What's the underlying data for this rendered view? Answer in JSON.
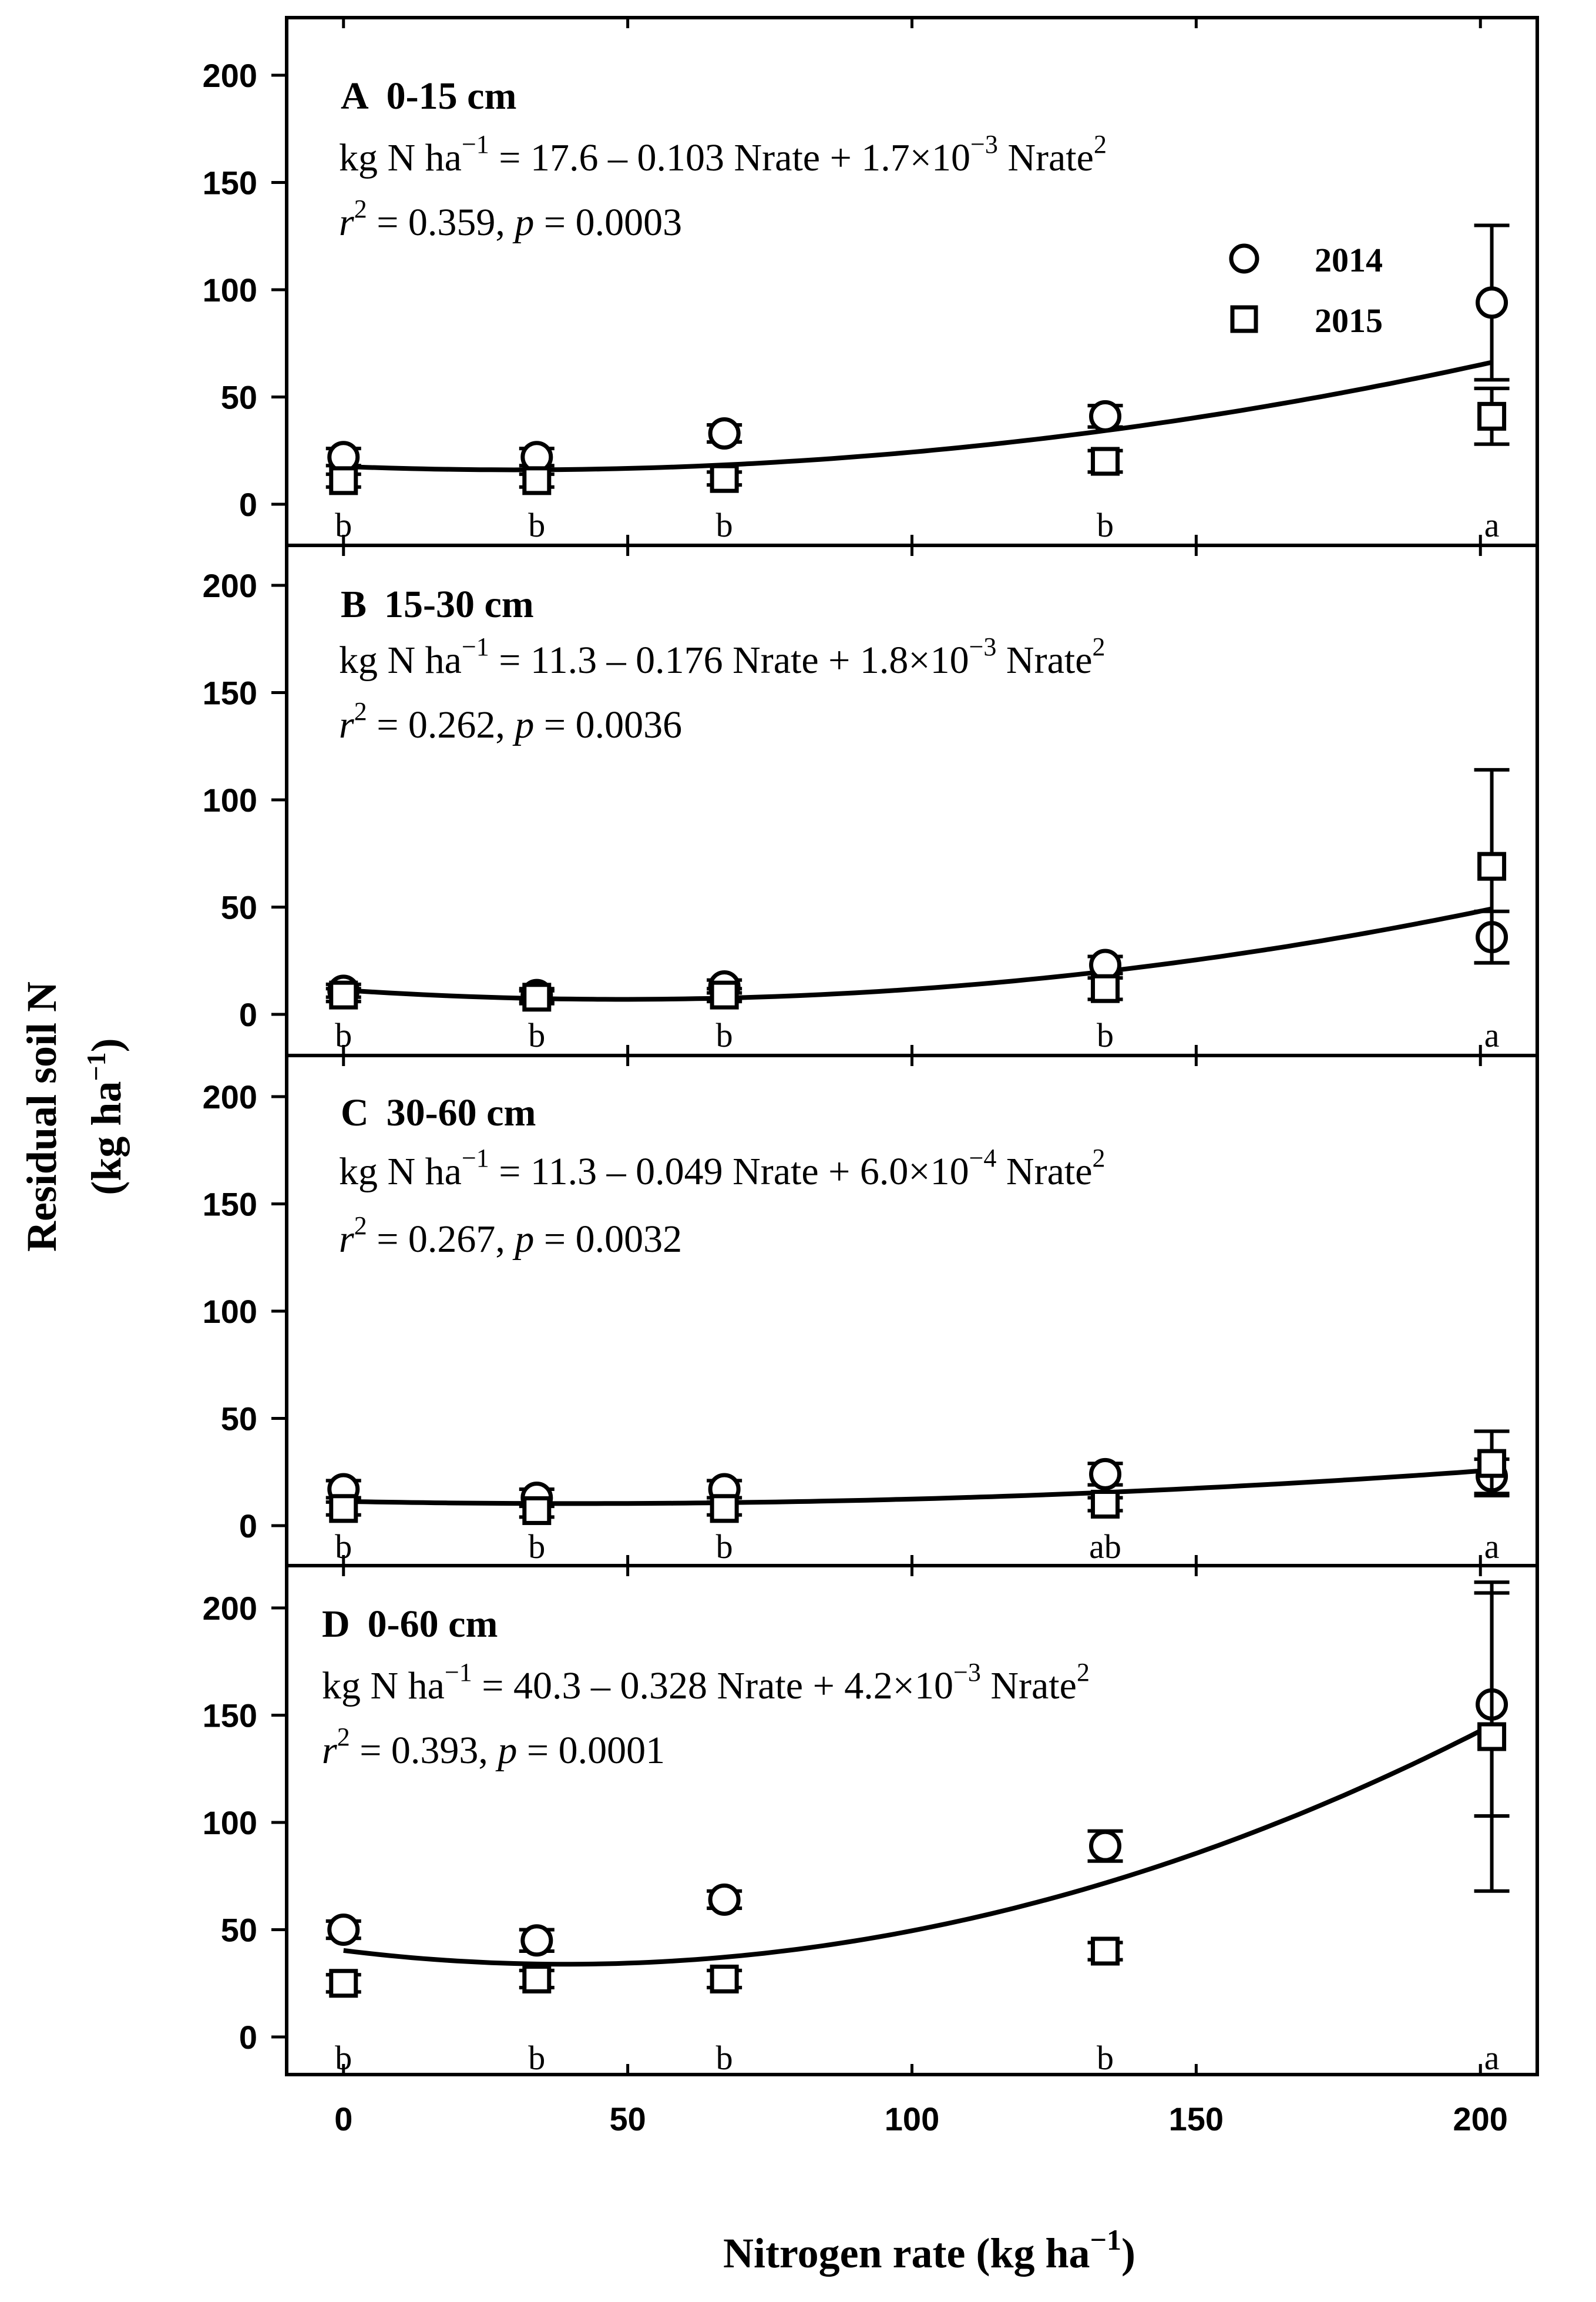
{
  "chart_data": [
    {
      "type": "scatter",
      "panel_letter": "A",
      "panel_depth": "0-15 cm",
      "equation": {
        "lhs": "kg N ha",
        "lhs_exp": "−1",
        "eq": " = 17.6 – 0.103 Nrate + 1.7×10",
        "exp": "−3",
        "tail": " Nrate",
        "tail_exp": "2"
      },
      "stats": {
        "r": "r",
        "r_exp": "2",
        "r_val": " = 0.359, ",
        "p": "p",
        "p_val": " = 0.0003"
      },
      "coefficients": [
        17.6,
        -0.103,
        0.0017
      ],
      "ylim": [
        -20,
        220
      ],
      "yticks": [
        0,
        50,
        100,
        150,
        200
      ],
      "series": [
        {
          "name": "2014",
          "marker": "circle",
          "x": [
            0,
            34,
            67,
            134,
            202
          ],
          "y": [
            22,
            22,
            33,
            41,
            94
          ],
          "err": [
            4,
            4,
            4,
            5,
            36
          ]
        },
        {
          "name": "2015",
          "marker": "square",
          "x": [
            0,
            34,
            67,
            134,
            202
          ],
          "y": [
            11,
            11,
            12,
            20,
            41
          ],
          "err": [
            3,
            3,
            3,
            5,
            13
          ]
        }
      ],
      "sig_letters": [
        "b",
        "b",
        "b",
        "b",
        "a"
      ],
      "show_legend": true
    },
    {
      "type": "scatter",
      "panel_letter": "B",
      "panel_depth": "15-30 cm",
      "equation": {
        "lhs": "kg N ha",
        "lhs_exp": "−1",
        "eq": " = 11.3 – 0.176 Nrate + 1.8×10",
        "exp": "−3",
        "tail": " Nrate",
        "tail_exp": "2"
      },
      "stats": {
        "r": "r",
        "r_exp": "2",
        "r_val": " = 0.262, ",
        "p": "p",
        "p_val": " = 0.0036"
      },
      "coefficients": [
        11.3,
        -0.176,
        0.0018
      ],
      "ylim": [
        -20,
        220
      ],
      "yticks": [
        0,
        50,
        100,
        150,
        200
      ],
      "series": [
        {
          "name": "2014",
          "marker": "circle",
          "x": [
            0,
            34,
            67,
            134,
            202
          ],
          "y": [
            11,
            9,
            13,
            23,
            36
          ],
          "err": [
            3,
            3,
            3,
            4,
            12
          ]
        },
        {
          "name": "2015",
          "marker": "square",
          "x": [
            0,
            34,
            67,
            134,
            202
          ],
          "y": [
            9,
            8,
            9,
            12,
            69
          ],
          "err": [
            3,
            3,
            3,
            5,
            45
          ]
        }
      ],
      "sig_letters": [
        "b",
        "b",
        "b",
        "b",
        "a"
      ],
      "show_legend": false
    },
    {
      "type": "scatter",
      "panel_letter": "C",
      "panel_depth": "30-60 cm",
      "equation": {
        "lhs": "kg N ha",
        "lhs_exp": "−1",
        "eq": " = 11.3 – 0.049 Nrate + 6.0×10",
        "exp": "−4",
        "tail": " Nrate",
        "tail_exp": "2"
      },
      "stats": {
        "r": "r",
        "r_exp": "2",
        "r_val": " = 0.267, ",
        "p": "p",
        "p_val": " = 0.0032"
      },
      "coefficients": [
        11.3,
        -0.049,
        0.0006
      ],
      "ylim": [
        -20,
        220
      ],
      "yticks": [
        0,
        50,
        100,
        150,
        200
      ],
      "series": [
        {
          "name": "2014",
          "marker": "circle",
          "x": [
            0,
            34,
            67,
            134,
            202
          ],
          "y": [
            17,
            13,
            17,
            24,
            23
          ],
          "err": [
            4,
            4,
            4,
            5,
            8
          ]
        },
        {
          "name": "2015",
          "marker": "square",
          "x": [
            0,
            34,
            67,
            134,
            202
          ],
          "y": [
            8,
            7,
            8,
            10,
            29
          ],
          "err": [
            3,
            3,
            3,
            3,
            15
          ]
        }
      ],
      "sig_letters": [
        "b",
        "b",
        "b",
        "ab",
        "a"
      ],
      "show_legend": false
    },
    {
      "type": "scatter",
      "panel_letter": "D",
      "panel_depth": "0-60 cm",
      "equation": {
        "lhs": "kg N ha",
        "lhs_exp": "−1",
        "eq": " = 40.3 – 0.328 Nrate + 4.2×10",
        "exp": "−3",
        "tail": " Nrate",
        "tail_exp": "2"
      },
      "stats": {
        "r": "r",
        "r_exp": "2",
        "r_val": " = 0.393, ",
        "p": "p",
        "p_val": " = 0.0001"
      },
      "coefficients": [
        40.3,
        -0.328,
        0.0042
      ],
      "ylim": [
        -20,
        220
      ],
      "yticks": [
        0,
        50,
        100,
        150,
        200
      ],
      "series": [
        {
          "name": "2014",
          "marker": "circle",
          "x": [
            0,
            34,
            67,
            134,
            202
          ],
          "y": [
            50,
            45,
            64,
            89,
            155
          ],
          "err": [
            4,
            5,
            4,
            7,
            52
          ]
        },
        {
          "name": "2015",
          "marker": "square",
          "x": [
            0,
            34,
            67,
            134,
            202
          ],
          "y": [
            25,
            27,
            27,
            40,
            140
          ],
          "err": [
            4,
            4,
            4,
            4,
            72
          ]
        }
      ],
      "sig_letters": [
        "b",
        "b",
        "b",
        "b",
        "a"
      ],
      "show_legend": false
    }
  ],
  "axes": {
    "xlabel": "Nitrogen rate (kg ha",
    "xlabel_exp": "−1",
    "xlabel_close": ")",
    "ylabel_line1": "Residual soil N",
    "ylabel_line2": "(kg ha",
    "ylabel_exp": "−1",
    "ylabel_close": ")",
    "xlim": [
      -10,
      210
    ],
    "xticks": [
      0,
      50,
      100,
      150,
      200
    ]
  },
  "legend": {
    "entry_2014": "2014",
    "entry_2015": "2015"
  }
}
